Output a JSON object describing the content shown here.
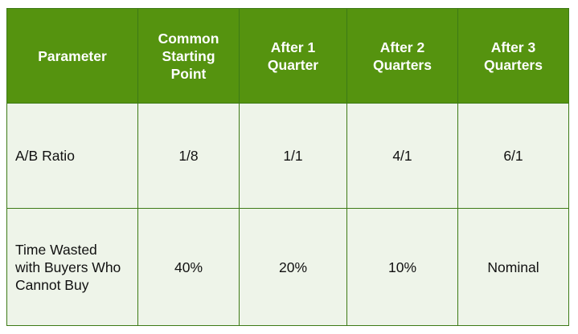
{
  "table": {
    "headers": [
      "Parameter",
      "Common\nStarting\nPoint",
      "After 1\nQuarter",
      "After 2\nQuarters",
      "After 3\nQuarters"
    ],
    "rows": [
      [
        "A/B Ratio",
        "1/8",
        "1/1",
        "4/1",
        "6/1"
      ],
      [
        "Time Wasted\nwith Buyers Who\nCannot Buy",
        "40%",
        "20%",
        "10%",
        "Nominal"
      ]
    ]
  },
  "colors": {
    "header_bg": "#55930f",
    "header_text": "#ffffff",
    "body_bg": "#eef4e9",
    "border": "#3d7a16"
  }
}
